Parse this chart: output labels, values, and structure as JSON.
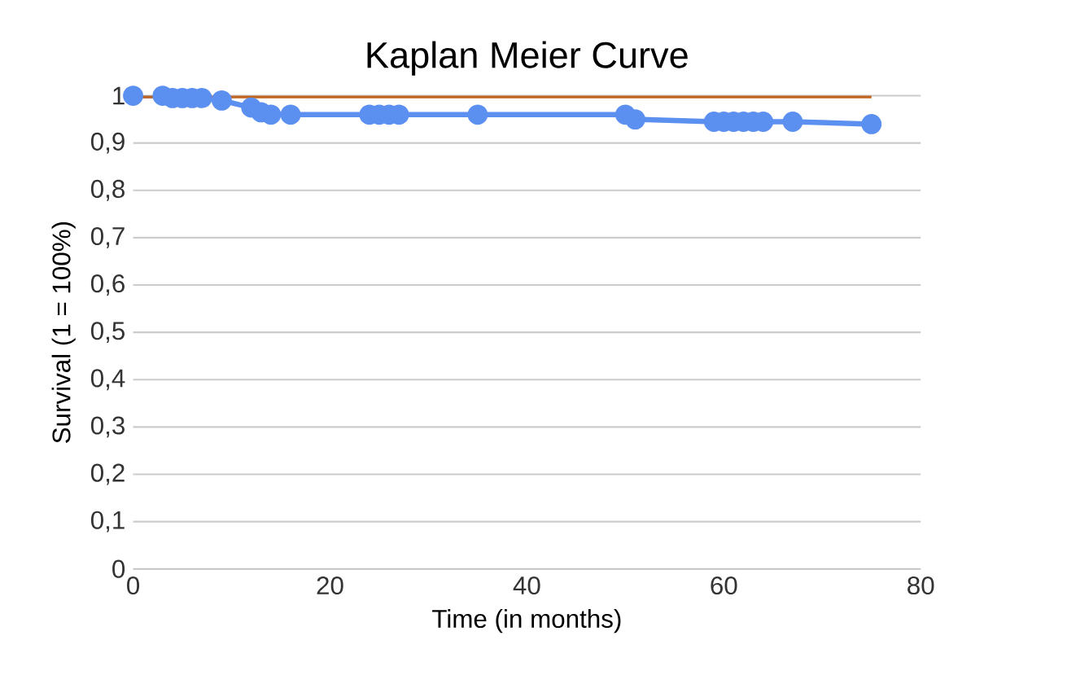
{
  "chart_data": {
    "type": "line",
    "title": "Kaplan Meier Curve",
    "xlabel": "Time (in months)",
    "ylabel": "Survival (1 = 100%)",
    "xlim": [
      0,
      80
    ],
    "xticks": [
      0,
      20,
      40,
      60,
      80
    ],
    "ylim": [
      0,
      1
    ],
    "yticks": [
      0,
      {
        "value": 0.1,
        "label": "0,1"
      },
      {
        "value": 0.2,
        "label": "0,2"
      },
      {
        "value": 0.3,
        "label": "0,3"
      },
      {
        "value": 0.4,
        "label": "0,4"
      },
      {
        "value": 0.5,
        "label": "0,5"
      },
      {
        "value": 0.6,
        "label": "0,6"
      },
      {
        "value": 0.7,
        "label": "0,7"
      },
      {
        "value": 0.8,
        "label": "0,8"
      },
      {
        "value": 0.9,
        "label": "0,9"
      },
      1
    ],
    "grid": "y",
    "series": [
      {
        "color": "#5b8ff0",
        "marker": "circle",
        "x": [
          0,
          3,
          4,
          5,
          6,
          7,
          9,
          12,
          13,
          14,
          16,
          24,
          25,
          26,
          27,
          35,
          50,
          51,
          59,
          60,
          61,
          62,
          63,
          64,
          67,
          75
        ],
        "values": [
          1,
          1,
          0.995,
          0.995,
          0.995,
          0.995,
          0.99,
          0.975,
          0.965,
          0.96,
          0.96,
          0.96,
          0.96,
          0.96,
          0.96,
          0.96,
          0.96,
          0.95,
          0.945,
          0.945,
          0.945,
          0.945,
          0.945,
          0.945,
          0.945,
          0.94
        ]
      },
      {
        "color": "#c0651f",
        "marker": "none",
        "x": [
          0,
          75
        ],
        "values": [
          1,
          1
        ]
      }
    ]
  }
}
